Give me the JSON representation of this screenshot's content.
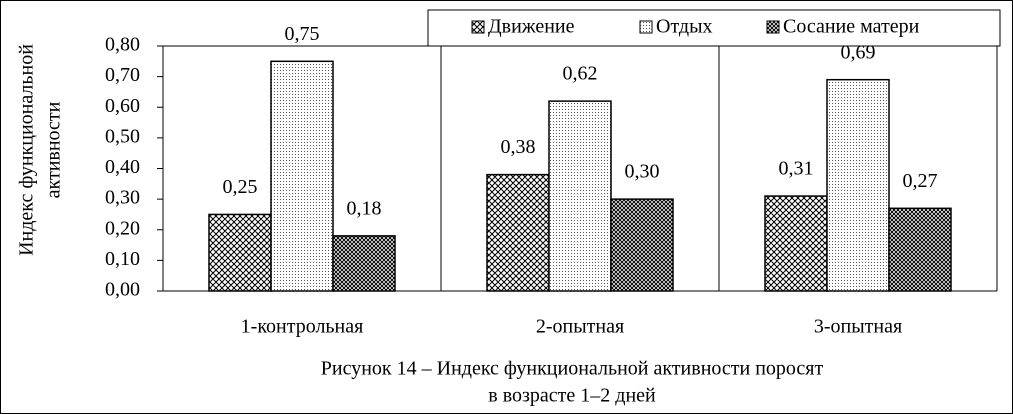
{
  "chart_data": {
    "type": "bar",
    "ylabel": [
      "Индекс функциональной",
      "активности"
    ],
    "caption": [
      "Рисунок 14 – Индекс функциональной активности  поросят",
      "в возрасте 1–2 дней"
    ],
    "categories": [
      "1-контрольная",
      "2-опытная",
      "3-опытная"
    ],
    "series": [
      {
        "name": "Движение",
        "color": "#000000",
        "pattern": "diagonal-cross",
        "values": [
          0.25,
          0.38,
          0.31
        ],
        "value_labels": [
          "0,25",
          "0,38",
          "0,31"
        ]
      },
      {
        "name": "Отдых",
        "color": "#000000",
        "pattern": "dots",
        "values": [
          0.75,
          0.62,
          0.69
        ],
        "value_labels": [
          "0,75",
          "0,62",
          "0,69"
        ]
      },
      {
        "name": "Сосание матери",
        "color": "#000000",
        "pattern": "dense-cross",
        "values": [
          0.18,
          0.3,
          0.27
        ],
        "value_labels": [
          "0,18",
          "0,30",
          "0,27"
        ]
      }
    ],
    "ylim": [
      0,
      0.8
    ],
    "yticks": [
      {
        "value": 0,
        "label": "0,00"
      },
      {
        "value": 0.1,
        "label": "0,10"
      },
      {
        "value": 0.2,
        "label": "0,20"
      },
      {
        "value": 0.3,
        "label": "0,30"
      },
      {
        "value": 0.4,
        "label": "0,40"
      },
      {
        "value": 0.5,
        "label": "0,50"
      },
      {
        "value": 0.6,
        "label": "0,60"
      },
      {
        "value": 0.7,
        "label": "0,70"
      },
      {
        "value": 0.8,
        "label": "0,80"
      }
    ],
    "legend": "top-right"
  }
}
